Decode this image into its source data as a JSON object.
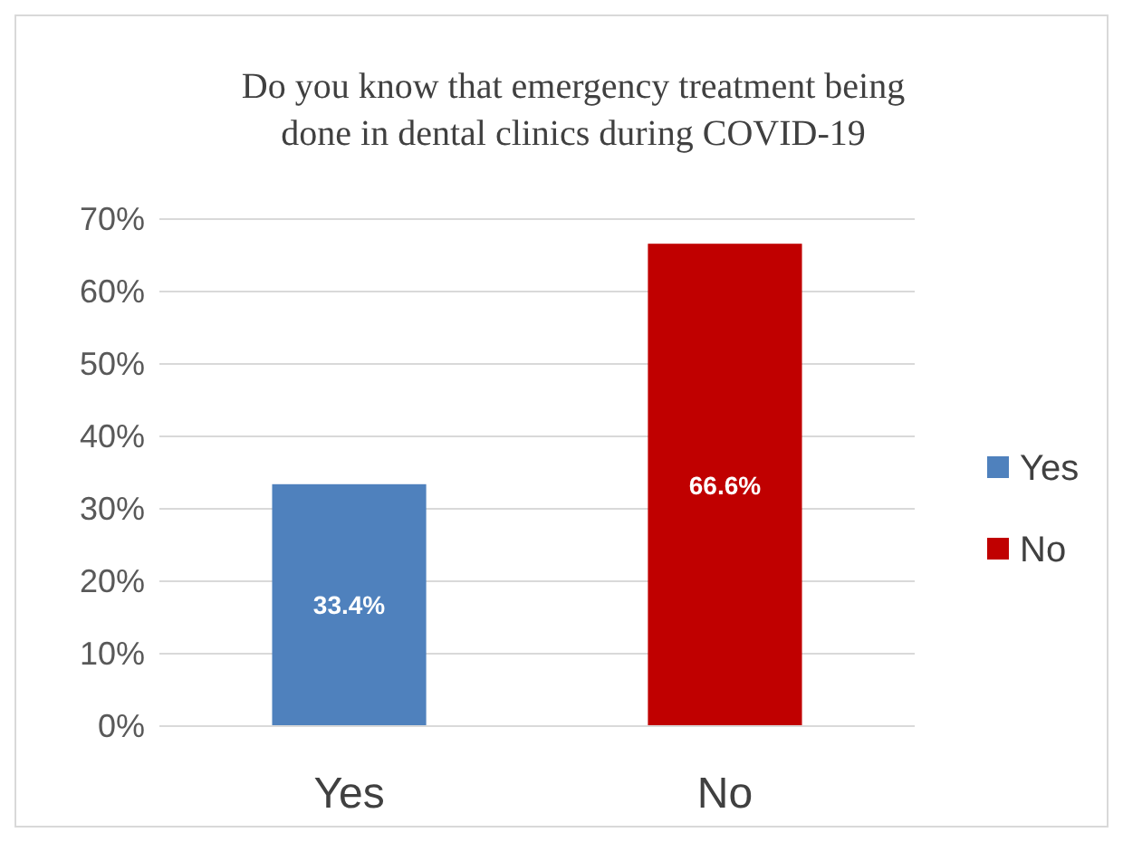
{
  "chart_data": {
    "type": "bar",
    "title": "Do you know that emergency treatment being done in dental clinics during COVID-19",
    "categories": [
      "Yes",
      "No"
    ],
    "stacked": true,
    "series": [
      {
        "name": "Yes",
        "color": "#4f81bd",
        "values": [
          33.4,
          null
        ],
        "value_labels": [
          "33.4%",
          null
        ]
      },
      {
        "name": "No",
        "color": "#c00000",
        "values": [
          null,
          66.6
        ],
        "value_labels": [
          null,
          "66.6%"
        ]
      }
    ],
    "ylim": [
      0,
      70
    ],
    "yticks": [
      {
        "value": 0,
        "label": "0%"
      },
      {
        "value": 10,
        "label": "10%"
      },
      {
        "value": 20,
        "label": "20%"
      },
      {
        "value": 30,
        "label": "30%"
      },
      {
        "value": 40,
        "label": "40%"
      },
      {
        "value": 50,
        "label": "50%"
      },
      {
        "value": 60,
        "label": "60%"
      },
      {
        "value": 70,
        "label": "70%"
      }
    ],
    "grid": "y",
    "legend": "right"
  }
}
